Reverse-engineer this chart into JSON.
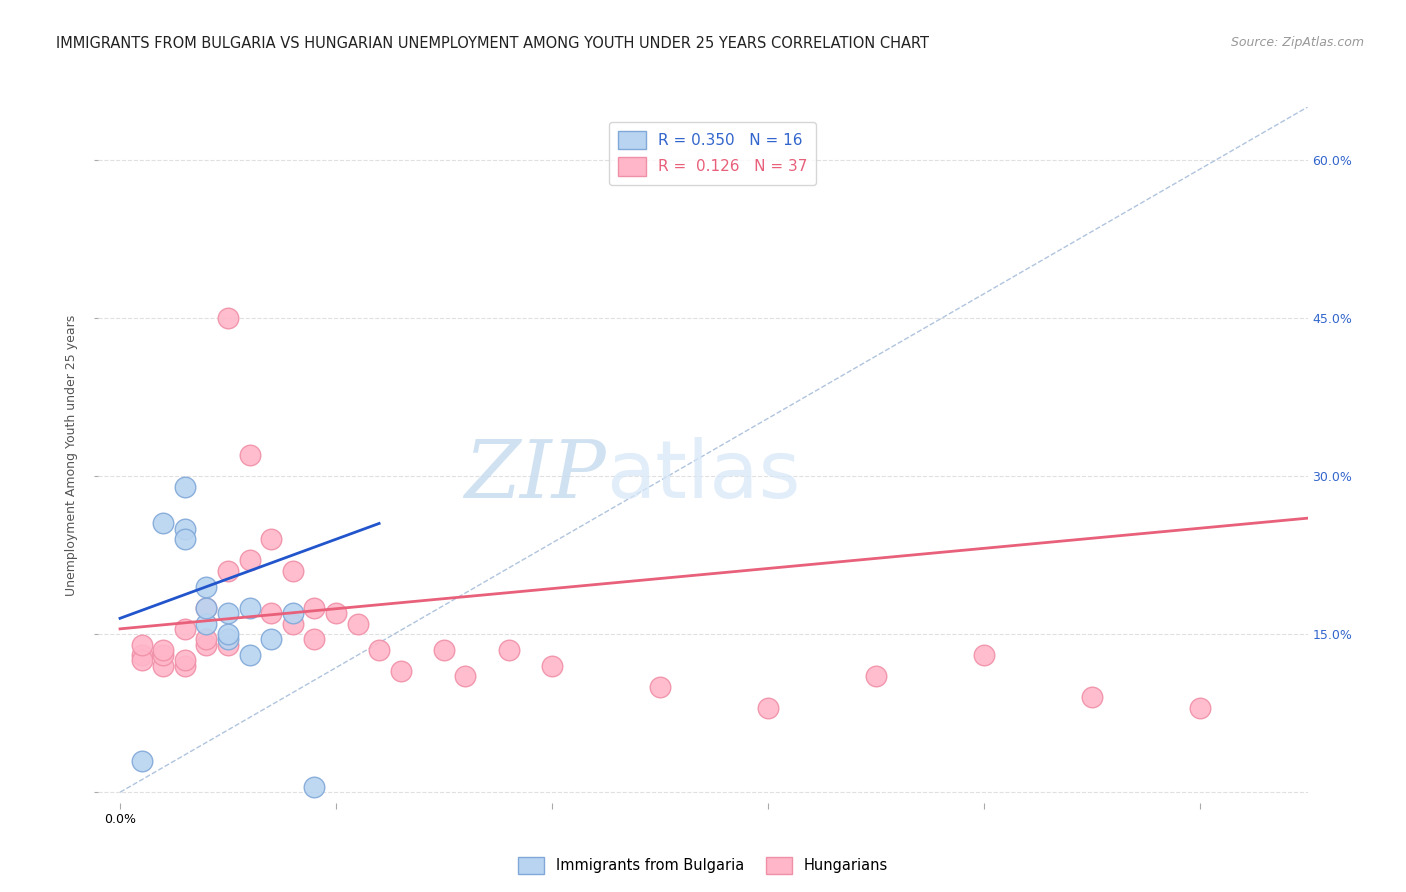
{
  "title": "IMMIGRANTS FROM BULGARIA VS HUNGARIAN UNEMPLOYMENT AMONG YOUTH UNDER 25 YEARS CORRELATION CHART",
  "source": "Source: ZipAtlas.com",
  "ylabel": "Unemployment Among Youth under 25 years",
  "xlim": [
    -0.001,
    0.055
  ],
  "ylim": [
    -0.01,
    0.65
  ],
  "xtick_positions": [
    0.0,
    0.01,
    0.02,
    0.03,
    0.04,
    0.05
  ],
  "xticklabels": [
    "0.0%",
    "",
    "",
    "",
    "",
    ""
  ],
  "xtick_show_end": true,
  "ytick_positions": [
    0.0,
    0.15,
    0.3,
    0.45,
    0.6
  ],
  "yticklabels_right": [
    "",
    "15.0%",
    "30.0%",
    "45.0%",
    "60.0%"
  ],
  "background_color": "#ffffff",
  "grid_color": "#e0e0e0",
  "legend_label_blue": "Immigrants from Bulgaria",
  "legend_label_pink": "Hungarians",
  "r_blue": "0.350",
  "n_blue": "16",
  "r_pink": "0.126",
  "n_pink": "37",
  "blue_scatter_x": [
    0.001,
    0.002,
    0.003,
    0.003,
    0.004,
    0.004,
    0.004,
    0.005,
    0.005,
    0.005,
    0.006,
    0.006,
    0.007,
    0.008,
    0.009,
    0.003
  ],
  "blue_scatter_y": [
    0.03,
    0.255,
    0.25,
    0.24,
    0.16,
    0.175,
    0.195,
    0.145,
    0.15,
    0.17,
    0.13,
    0.175,
    0.145,
    0.17,
    0.005,
    0.29
  ],
  "pink_scatter_x": [
    0.001,
    0.001,
    0.001,
    0.002,
    0.002,
    0.002,
    0.003,
    0.003,
    0.003,
    0.004,
    0.004,
    0.004,
    0.005,
    0.005,
    0.005,
    0.006,
    0.006,
    0.007,
    0.007,
    0.008,
    0.008,
    0.009,
    0.009,
    0.01,
    0.011,
    0.012,
    0.013,
    0.015,
    0.016,
    0.018,
    0.02,
    0.025,
    0.03,
    0.035,
    0.04,
    0.045,
    0.05
  ],
  "pink_scatter_y": [
    0.13,
    0.125,
    0.14,
    0.12,
    0.13,
    0.135,
    0.12,
    0.125,
    0.155,
    0.14,
    0.145,
    0.175,
    0.21,
    0.45,
    0.14,
    0.22,
    0.32,
    0.17,
    0.24,
    0.16,
    0.21,
    0.145,
    0.175,
    0.17,
    0.16,
    0.135,
    0.115,
    0.135,
    0.11,
    0.135,
    0.12,
    0.1,
    0.08,
    0.11,
    0.13,
    0.09,
    0.08
  ],
  "blue_line_x": [
    0.0,
    0.012
  ],
  "blue_line_y": [
    0.165,
    0.255
  ],
  "pink_line_x": [
    0.0,
    0.055
  ],
  "pink_line_y": [
    0.155,
    0.26
  ],
  "dashed_line_x": [
    0.0,
    0.055
  ],
  "dashed_line_y": [
    0.0,
    0.65
  ],
  "watermark_zip": "ZIP",
  "watermark_atlas": "atlas",
  "title_fontsize": 10.5,
  "source_fontsize": 9,
  "axis_fontsize": 9,
  "label_fontsize": 9
}
